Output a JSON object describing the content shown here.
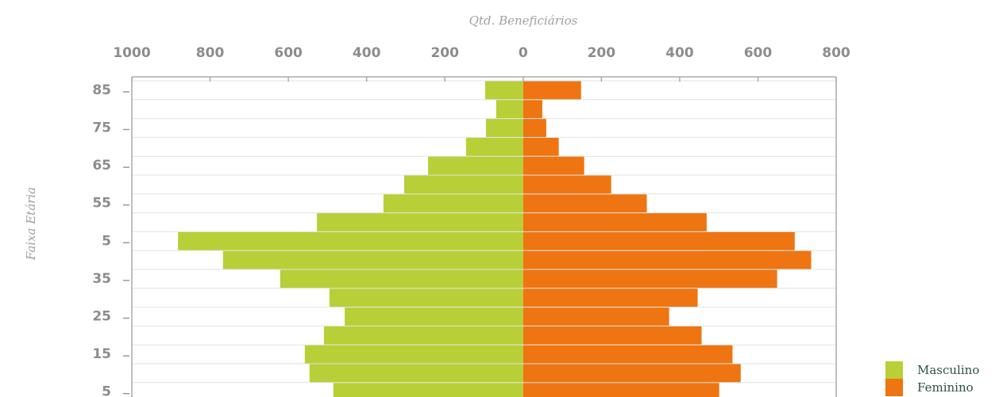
{
  "chart_data": {
    "type": "pyramid",
    "x_label": "Qtd. Beneficiários",
    "y_label": "Faixa Etária",
    "categories": [
      "85",
      null,
      "75",
      null,
      "65",
      null,
      "55",
      null,
      "5",
      null,
      "35",
      null,
      "25",
      null,
      "15",
      null,
      "5"
    ],
    "series": [
      {
        "name": "Masculino",
        "color": "#b8cf37",
        "values": [
          -97,
          -69,
          -95,
          -146,
          -243,
          -304,
          -357,
          -527,
          -882,
          -767,
          -621,
          -495,
          -456,
          -509,
          -558,
          -546,
          -485
        ]
      },
      {
        "name": "Feminino",
        "color": "#ee7511",
        "values": [
          148,
          49,
          59,
          91,
          156,
          225,
          316,
          469,
          694,
          736,
          649,
          446,
          373,
          456,
          535,
          556,
          501
        ]
      }
    ],
    "xlim": [
      -1000,
      800
    ],
    "xticks": [
      {
        "value": -1000,
        "label": "1000"
      },
      {
        "value": -800,
        "label": "800"
      },
      {
        "value": -600,
        "label": "600"
      },
      {
        "value": -400,
        "label": "400"
      },
      {
        "value": -200,
        "label": "200"
      },
      0,
      200,
      400,
      600,
      800
    ],
    "grid": true,
    "legend": "bottom-right"
  }
}
